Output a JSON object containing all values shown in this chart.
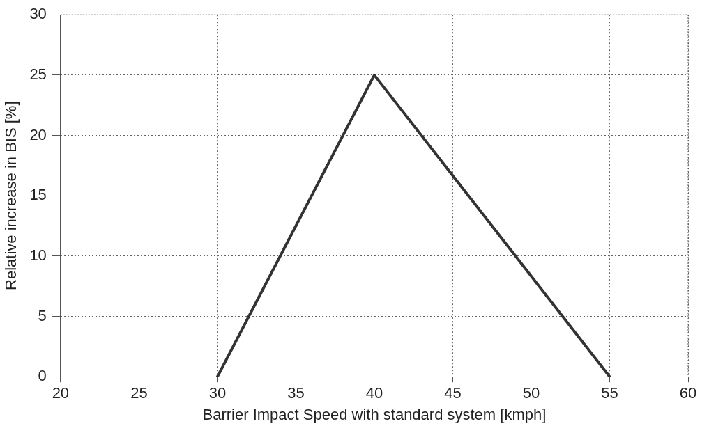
{
  "chart_data": {
    "type": "line",
    "xlabel": "Barrier Impact Speed with standard system [kmph]",
    "ylabel": "Relative increase in BIS [%]",
    "x": [
      30,
      40,
      55
    ],
    "series": [
      {
        "color": "#333333",
        "values": [
          0,
          25,
          0
        ]
      }
    ],
    "xlim": [
      20,
      60
    ],
    "xticks": [
      20,
      25,
      30,
      35,
      40,
      45,
      50,
      55,
      60
    ],
    "ylim": [
      0,
      30
    ],
    "yticks": [
      0,
      5,
      10,
      15,
      20,
      25,
      30
    ],
    "grid": true,
    "legend": false,
    "marker": "none",
    "line_style": "solid"
  }
}
